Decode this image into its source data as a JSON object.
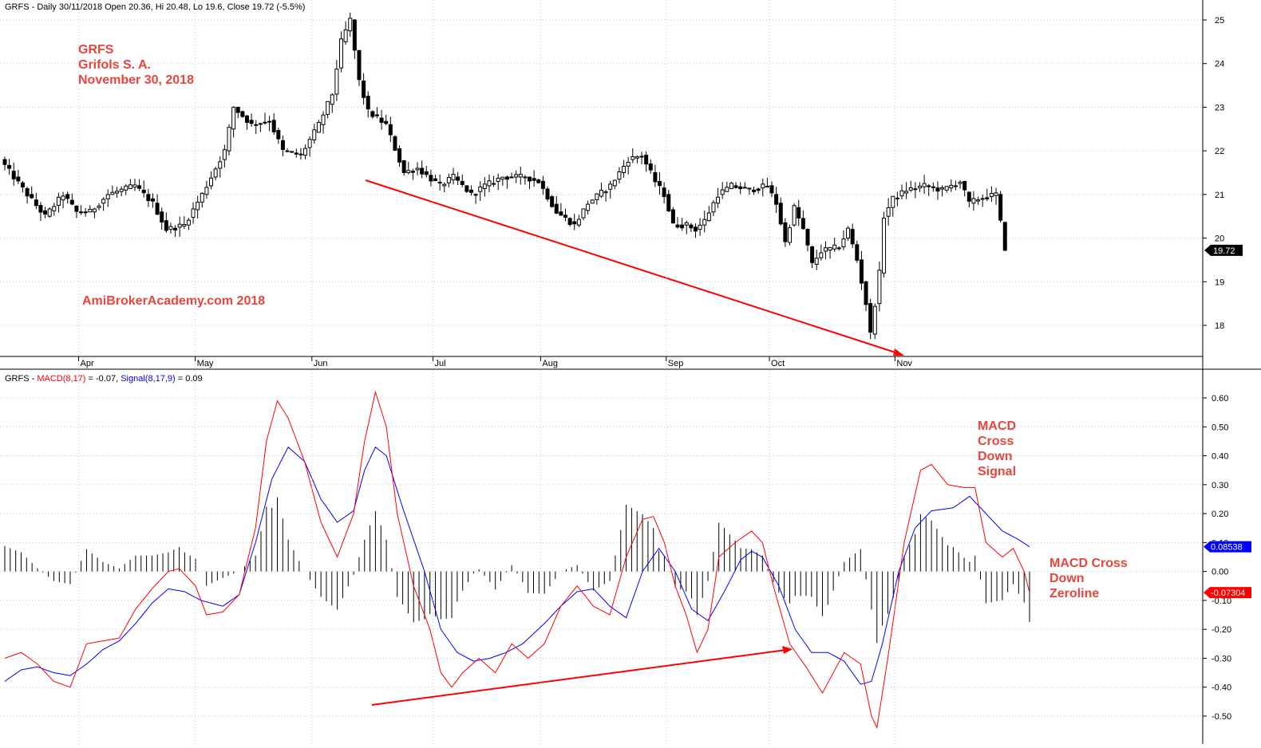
{
  "header": {
    "price_title": "GRFS - Daily 30/11/2018 Open 20.36, Hi 20.48, Lo 19.6, Close 19.72 (-5.5%)",
    "macd_prefix": "GRFS - ",
    "macd_label": "MACD(8,17)",
    "macd_value_text": " = -0.07, ",
    "signal_label": "Signal(8,17,9)",
    "signal_value_text": " = 0.09"
  },
  "annotations": {
    "ticker": "GRFS",
    "company": "Grifols S. A.",
    "date": "November 30, 2018",
    "watermark": "AmiBrokerAcademy.com  2018",
    "macd_cross_signal": [
      "MACD",
      "Cross",
      "Down",
      "Signal"
    ],
    "macd_cross_zero": [
      "MACD Cross",
      "Down",
      "Zeroline"
    ]
  },
  "colors": {
    "candle": "#000000",
    "macd": "#ff0000",
    "signal": "#0000ff",
    "trendline": "#ff0000",
    "annotation_text": "#e8453c",
    "last_price_bg": "#000000",
    "signal_badge_bg": "#0000ff",
    "macd_badge_bg": "#ff0000",
    "grid": "#c8c8c8"
  },
  "chart_data": [
    {
      "type": "candlestick",
      "title": "GRFS - Daily 30/11/2018 Open 20.36, Hi 20.48, Lo 19.6, Close 19.72 (-5.5%)",
      "ylim": [
        17.2,
        25.3
      ],
      "y_ticks": [
        "18",
        "19",
        "20",
        "21",
        "22",
        "23",
        "24",
        "25"
      ],
      "months": [
        {
          "label": "Apr",
          "index": 17
        },
        {
          "label": "May",
          "index": 43
        },
        {
          "label": "Jun",
          "index": 69
        },
        {
          "label": "Jul",
          "index": 96
        },
        {
          "label": "Aug",
          "index": 120
        },
        {
          "label": "Sep",
          "index": 148
        },
        {
          "label": "Oct",
          "index": 171
        },
        {
          "label": "Nov",
          "index": 199
        }
      ],
      "last_price": "19.72",
      "last_close": 19.72,
      "anchors": [
        [
          0,
          21.8
        ],
        [
          6,
          21.0
        ],
        [
          10,
          20.5
        ],
        [
          14,
          21.0
        ],
        [
          17,
          20.6
        ],
        [
          20,
          20.6
        ],
        [
          24,
          21.0
        ],
        [
          30,
          21.2
        ],
        [
          34,
          20.8
        ],
        [
          37,
          20.2
        ],
        [
          41,
          20.3
        ],
        [
          45,
          21.0
        ],
        [
          50,
          22.0
        ],
        [
          52,
          23.0
        ],
        [
          56,
          22.6
        ],
        [
          60,
          22.7
        ],
        [
          63,
          22.0
        ],
        [
          67,
          21.9
        ],
        [
          71,
          22.6
        ],
        [
          74,
          23.3
        ],
        [
          76,
          24.5
        ],
        [
          78,
          25.0
        ],
        [
          80,
          23.6
        ],
        [
          82,
          22.9
        ],
        [
          86,
          22.6
        ],
        [
          90,
          21.5
        ],
        [
          93,
          21.6
        ],
        [
          98,
          21.2
        ],
        [
          101,
          21.4
        ],
        [
          105,
          21.0
        ],
        [
          108,
          21.2
        ],
        [
          112,
          21.4
        ],
        [
          117,
          21.4
        ],
        [
          120,
          21.3
        ],
        [
          124,
          20.6
        ],
        [
          128,
          20.3
        ],
        [
          131,
          20.8
        ],
        [
          136,
          21.2
        ],
        [
          140,
          21.8
        ],
        [
          143,
          21.9
        ],
        [
          146,
          21.3
        ],
        [
          148,
          21.0
        ],
        [
          150,
          20.3
        ],
        [
          153,
          20.3
        ],
        [
          155,
          20.2
        ],
        [
          157,
          20.4
        ],
        [
          160,
          21.0
        ],
        [
          163,
          21.2
        ],
        [
          167,
          21.1
        ],
        [
          171,
          21.2
        ],
        [
          173,
          20.8
        ],
        [
          175,
          19.9
        ],
        [
          177,
          20.7
        ],
        [
          179,
          20.2
        ],
        [
          181,
          19.4
        ],
        [
          183,
          19.7
        ],
        [
          187,
          19.8
        ],
        [
          189,
          20.2
        ],
        [
          191,
          19.5
        ],
        [
          193,
          18.5
        ],
        [
          194,
          17.8
        ],
        [
          196,
          19.2
        ],
        [
          197,
          20.5
        ],
        [
          199,
          20.9
        ],
        [
          202,
          21.1
        ],
        [
          206,
          21.2
        ],
        [
          210,
          21.1
        ],
        [
          214,
          21.3
        ],
        [
          216,
          20.8
        ],
        [
          218,
          20.9
        ],
        [
          222,
          21.0
        ],
        [
          223,
          20.36
        ]
      ],
      "volatility": 0.22
    },
    {
      "type": "line",
      "title": "GRFS - MACD(8,17) = -0.07, Signal(8,17,9) = 0.09",
      "ylim": [
        -0.58,
        0.66
      ],
      "y_ticks": [
        "-0.50",
        "-0.40",
        "-0.30",
        "-0.20",
        "-0.10",
        "0.00",
        "0.10",
        "0.20",
        "0.30",
        "0.40",
        "0.50",
        "0.60"
      ],
      "macd_value": "-0.07304",
      "signal_value": "0.08538",
      "series": [
        {
          "name": "MACD(8,17)",
          "anchors": [
            [
              0,
              -0.3
            ],
            [
              3,
              -0.28
            ],
            [
              6,
              -0.32
            ],
            [
              9,
              -0.38
            ],
            [
              12,
              -0.4
            ],
            [
              15,
              -0.25
            ],
            [
              18,
              -0.24
            ],
            [
              21,
              -0.23
            ],
            [
              24,
              -0.13
            ],
            [
              27,
              -0.06
            ],
            [
              30,
              0.0
            ],
            [
              32,
              0.01
            ],
            [
              35,
              -0.05
            ],
            [
              37,
              -0.15
            ],
            [
              40,
              -0.14
            ],
            [
              43,
              -0.08
            ],
            [
              46,
              0.15
            ],
            [
              48,
              0.45
            ],
            [
              50,
              0.59
            ],
            [
              52,
              0.53
            ],
            [
              55,
              0.38
            ],
            [
              58,
              0.17
            ],
            [
              61,
              0.05
            ],
            [
              64,
              0.2
            ],
            [
              66,
              0.45
            ],
            [
              68,
              0.62
            ],
            [
              70,
              0.5
            ],
            [
              72,
              0.2
            ],
            [
              75,
              -0.05
            ],
            [
              78,
              -0.2
            ],
            [
              80,
              -0.35
            ],
            [
              82,
              -0.4
            ],
            [
              84,
              -0.35
            ],
            [
              87,
              -0.3
            ],
            [
              90,
              -0.35
            ],
            [
              93,
              -0.25
            ],
            [
              96,
              -0.3
            ],
            [
              99,
              -0.25
            ],
            [
              102,
              -0.12
            ],
            [
              105,
              -0.05
            ],
            [
              108,
              -0.12
            ],
            [
              111,
              -0.15
            ],
            [
              114,
              0.05
            ],
            [
              117,
              0.18
            ],
            [
              119,
              0.19
            ],
            [
              121,
              0.1
            ],
            [
              123,
              -0.05
            ],
            [
              125,
              -0.15
            ],
            [
              127,
              -0.28
            ],
            [
              129,
              -0.2
            ],
            [
              131,
              0.05
            ],
            [
              134,
              0.1
            ],
            [
              137,
              0.14
            ],
            [
              139,
              0.1
            ],
            [
              141,
              -0.05
            ],
            [
              144,
              -0.25
            ],
            [
              147,
              -0.33
            ],
            [
              150,
              -0.42
            ],
            [
              152,
              -0.35
            ],
            [
              154,
              -0.28
            ],
            [
              157,
              -0.32
            ],
            [
              159,
              -0.5
            ],
            [
              160,
              -0.54
            ],
            [
              162,
              -0.3
            ],
            [
              165,
              0.1
            ],
            [
              168,
              0.35
            ],
            [
              170,
              0.37
            ],
            [
              173,
              0.3
            ],
            [
              176,
              0.29
            ],
            [
              178,
              0.29
            ],
            [
              180,
              0.1
            ],
            [
              183,
              0.05
            ],
            [
              185,
              0.08
            ],
            [
              187,
              0.0
            ],
            [
              188,
              -0.07304
            ]
          ]
        },
        {
          "name": "Signal(8,17,9)",
          "anchors": [
            [
              0,
              -0.38
            ],
            [
              3,
              -0.34
            ],
            [
              6,
              -0.33
            ],
            [
              9,
              -0.35
            ],
            [
              12,
              -0.36
            ],
            [
              15,
              -0.32
            ],
            [
              18,
              -0.27
            ],
            [
              21,
              -0.24
            ],
            [
              24,
              -0.18
            ],
            [
              27,
              -0.11
            ],
            [
              30,
              -0.06
            ],
            [
              33,
              -0.07
            ],
            [
              36,
              -0.1
            ],
            [
              40,
              -0.12
            ],
            [
              43,
              -0.08
            ],
            [
              46,
              0.1
            ],
            [
              49,
              0.32
            ],
            [
              52,
              0.43
            ],
            [
              55,
              0.38
            ],
            [
              58,
              0.25
            ],
            [
              61,
              0.17
            ],
            [
              64,
              0.21
            ],
            [
              66,
              0.35
            ],
            [
              68,
              0.43
            ],
            [
              70,
              0.4
            ],
            [
              73,
              0.22
            ],
            [
              77,
              0.0
            ],
            [
              80,
              -0.2
            ],
            [
              83,
              -0.28
            ],
            [
              86,
              -0.31
            ],
            [
              89,
              -0.3
            ],
            [
              92,
              -0.28
            ],
            [
              95,
              -0.25
            ],
            [
              99,
              -0.18
            ],
            [
              102,
              -0.12
            ],
            [
              105,
              -0.07
            ],
            [
              108,
              -0.06
            ],
            [
              111,
              -0.12
            ],
            [
              114,
              -0.16
            ],
            [
              117,
              0.0
            ],
            [
              120,
              0.08
            ],
            [
              123,
              0.0
            ],
            [
              126,
              -0.13
            ],
            [
              129,
              -0.17
            ],
            [
              132,
              -0.07
            ],
            [
              135,
              0.04
            ],
            [
              137,
              0.07
            ],
            [
              139,
              0.05
            ],
            [
              142,
              -0.05
            ],
            [
              145,
              -0.2
            ],
            [
              148,
              -0.28
            ],
            [
              151,
              -0.28
            ],
            [
              154,
              -0.31
            ],
            [
              157,
              -0.39
            ],
            [
              159,
              -0.38
            ],
            [
              161,
              -0.25
            ],
            [
              164,
              0.0
            ],
            [
              167,
              0.15
            ],
            [
              170,
              0.21
            ],
            [
              174,
              0.22
            ],
            [
              177,
              0.26
            ],
            [
              180,
              0.2
            ],
            [
              183,
              0.14
            ],
            [
              186,
              0.11
            ],
            [
              188,
              0.08538
            ]
          ]
        }
      ]
    }
  ]
}
